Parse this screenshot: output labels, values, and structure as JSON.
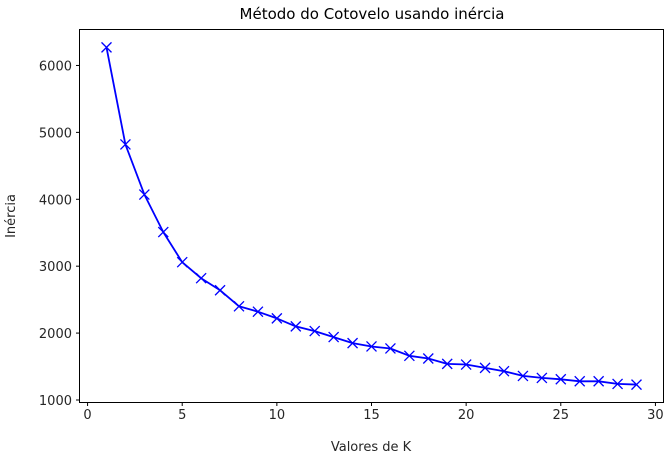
{
  "chart_data": {
    "type": "line",
    "title": "Método do Cotovelo usando inércia",
    "xlabel": "Valores de K",
    "ylabel": "Inércia",
    "xlim": [
      -0.4,
      30.4
    ],
    "ylim": [
      970,
      6530
    ],
    "xticks": [
      0,
      5,
      10,
      15,
      20,
      25,
      30
    ],
    "yticks": [
      1000,
      2000,
      3000,
      4000,
      5000,
      6000
    ],
    "grid": false,
    "marker": "x",
    "line_color": "#0000ff",
    "series": [
      {
        "x": [
          1,
          2,
          3,
          4,
          5,
          6,
          7,
          8,
          9,
          10,
          11,
          12,
          13,
          14,
          15,
          16,
          17,
          18,
          19,
          20,
          21,
          22,
          23,
          24,
          25,
          26,
          27,
          28,
          29
        ],
        "values": [
          6270,
          4820,
          4070,
          3510,
          3060,
          2820,
          2640,
          2400,
          2320,
          2220,
          2100,
          2030,
          1940,
          1850,
          1800,
          1770,
          1660,
          1620,
          1540,
          1530,
          1480,
          1430,
          1360,
          1330,
          1310,
          1280,
          1280,
          1240,
          1230
        ]
      }
    ]
  }
}
